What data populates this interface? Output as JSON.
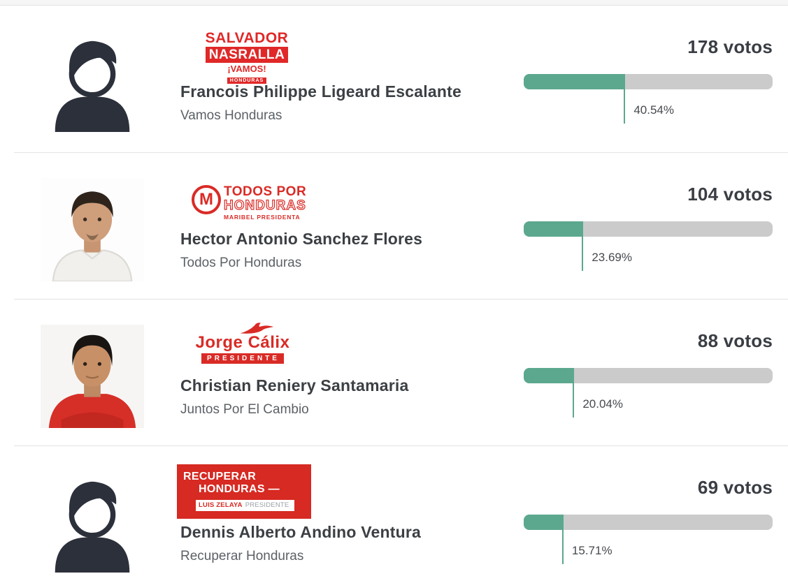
{
  "colors": {
    "bar_fill": "#5ba88e",
    "bar_track": "#cbcbcb",
    "brand_red": "#d92b26",
    "name_text": "#3c4044",
    "party_text": "#5c6166",
    "silhouette": "#2c303b"
  },
  "chart_data": {
    "type": "bar",
    "title": "",
    "categories": [
      "Francois Philippe Ligeard Escalante",
      "Hector Antonio Sanchez Flores",
      "Christian Reniery Santamaria",
      "Dennis Alberto Andino Ventura"
    ],
    "series": [
      {
        "name": "votos",
        "values": [
          178,
          104,
          88,
          69
        ]
      },
      {
        "name": "percent",
        "values": [
          40.54,
          23.69,
          20.04,
          15.71
        ]
      }
    ],
    "xlabel": "",
    "ylabel": "votos",
    "xlim_percent": [
      0,
      100
    ]
  },
  "candidates": [
    {
      "name": "Francois Philippe Ligeard Escalante",
      "party": "Vamos Honduras",
      "votes": "178 votos",
      "percent": 40.54,
      "percent_label": "40.54%",
      "avatar": "placeholder-silhouette",
      "logo": {
        "brand": "Salvador Nasralla Vamos Honduras",
        "line1": "SALVADOR",
        "line2": "NASRALLA",
        "line3": "¡VAMOS!",
        "line4": "HONDURAS"
      }
    },
    {
      "name": "Hector Antonio Sanchez Flores",
      "party": "Todos Por Honduras",
      "votes": "104 votos",
      "percent": 23.69,
      "percent_label": "23.69%",
      "avatar": "photo-white-shirt",
      "logo": {
        "brand": "Todos Por Honduras",
        "monogram": "M",
        "line1": "TODOS POR",
        "line2": "HONDURAS",
        "line3": "MARIBEL PRESIDENTA"
      }
    },
    {
      "name": "Christian Reniery Santamaria",
      "party": "Juntos Por El Cambio",
      "votes": "88 votos",
      "percent": 20.04,
      "percent_label": "20.04%",
      "avatar": "photo-red-shirt",
      "logo": {
        "brand": "Jorge Cálix Presidente",
        "line1": "Jorge Cálix",
        "line2": "PRESIDENTE"
      }
    },
    {
      "name": "Dennis Alberto Andino Ventura",
      "party": "Recuperar Honduras",
      "votes": "69 votos",
      "percent": 15.71,
      "percent_label": "15.71%",
      "avatar": "placeholder-silhouette",
      "logo": {
        "brand": "Recuperar Honduras Luis Zelaya Presidente",
        "line1": "RECUPERAR",
        "line2": "HONDURAS —",
        "line3_name": "LUIS ZELAYA",
        "line3_title": "PRESIDENTE"
      }
    }
  ]
}
